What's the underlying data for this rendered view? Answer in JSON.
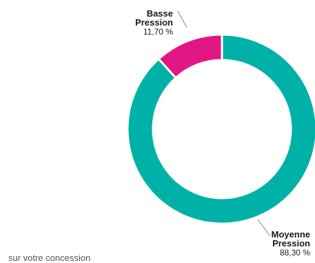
{
  "chart_data": {
    "type": "pie",
    "style": "donut",
    "slices": [
      {
        "name_lines": [
          "Basse",
          "Pression"
        ],
        "value": 11.7,
        "value_label": "11,70 %",
        "color": "#e01784"
      },
      {
        "name_lines": [
          "Moyenne",
          "Pression"
        ],
        "value": 88.3,
        "value_label": "88,30 %",
        "color": "#00b1a8"
      }
    ],
    "title": "",
    "legend": "none"
  },
  "footnote": "sur votre concession"
}
